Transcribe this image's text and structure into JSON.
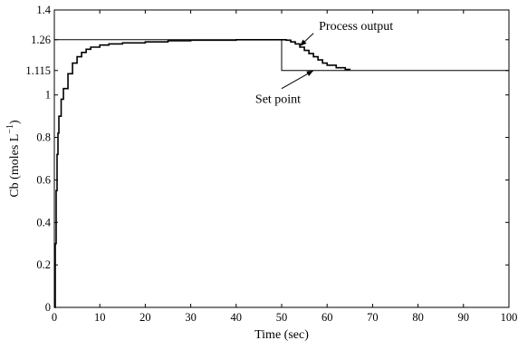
{
  "chart_data": {
    "type": "line",
    "title": "",
    "xlabel": "Time (sec)",
    "ylabel": "Cb (moles L",
    "ylabel_superscript": "−1",
    "ylabel_suffix": ")",
    "xlim": [
      0,
      100
    ],
    "ylim": [
      0,
      1.4
    ],
    "grid": false,
    "legend": "none",
    "x_ticks": [
      0,
      10,
      20,
      30,
      40,
      50,
      60,
      70,
      80,
      90,
      100
    ],
    "x_tick_labels": [
      "0",
      "10",
      "20",
      "30",
      "40",
      "50",
      "60",
      "70",
      "80",
      "90",
      "100"
    ],
    "y_ticks": [
      0,
      0.2,
      0.4,
      0.6,
      0.8,
      1.0,
      1.115,
      1.26,
      1.4
    ],
    "y_tick_labels": [
      "0",
      "0.2",
      "0.4",
      "0.6",
      "0.8",
      "1",
      "1.115",
      "1.26",
      "1.4"
    ],
    "series": [
      {
        "role": "set point",
        "color": "#000000",
        "style": "solid",
        "x": [
          0,
          50,
          50,
          100
        ],
        "y": [
          1.26,
          1.26,
          1.115,
          1.115
        ]
      },
      {
        "role": "process output",
        "color": "#000000",
        "style": "stepped",
        "x": [
          0,
          0.2,
          0.4,
          0.6,
          0.8,
          1,
          1.5,
          2,
          3,
          4,
          5,
          6,
          7,
          8,
          10,
          12,
          15,
          20,
          25,
          30,
          40,
          48,
          50,
          51,
          52,
          53,
          54,
          55,
          56,
          57,
          58,
          59,
          60,
          62,
          64,
          65
        ],
        "y": [
          0,
          0.3,
          0.55,
          0.72,
          0.82,
          0.9,
          0.98,
          1.03,
          1.1,
          1.15,
          1.18,
          1.2,
          1.215,
          1.225,
          1.235,
          1.24,
          1.245,
          1.25,
          1.255,
          1.258,
          1.26,
          1.26,
          1.26,
          1.258,
          1.25,
          1.24,
          1.225,
          1.21,
          1.195,
          1.18,
          1.165,
          1.15,
          1.14,
          1.128,
          1.12,
          1.117
        ]
      }
    ],
    "annotations": [
      {
        "text": "Process output",
        "tail": [
          57,
          1.29
        ],
        "head": [
          54,
          1.23
        ]
      },
      {
        "text": "Set point",
        "tail": [
          50,
          1.03
        ],
        "head": [
          57,
          1.115
        ]
      }
    ]
  }
}
